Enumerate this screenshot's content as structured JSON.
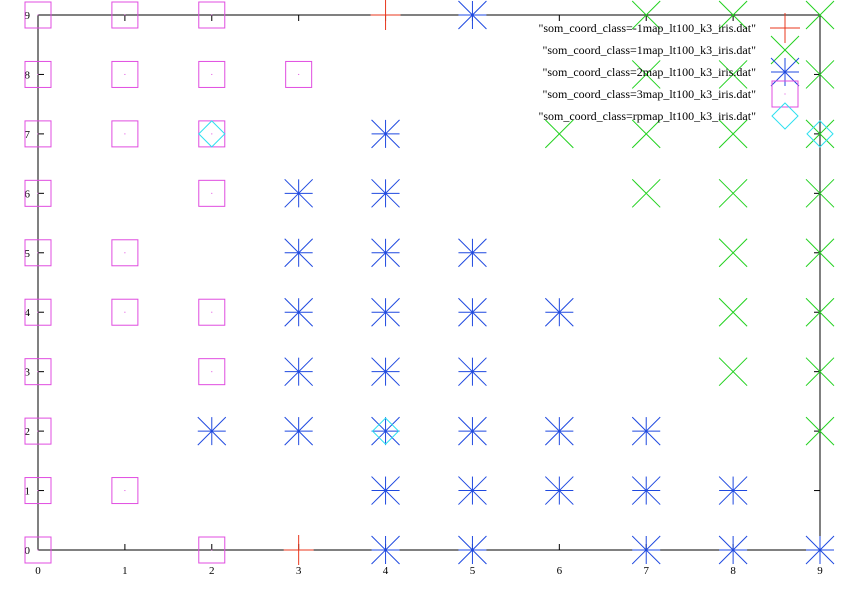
{
  "chart_data": {
    "type": "scatter",
    "title": "",
    "xlabel": "",
    "ylabel": "",
    "xlim": [
      0,
      9
    ],
    "ylim": [
      0,
      9
    ],
    "x_ticks": [
      "0",
      "1",
      "2",
      "3",
      "4",
      "5",
      "6",
      "7",
      "8",
      "9"
    ],
    "y_ticks": [
      "0",
      "1",
      "2",
      "3",
      "4",
      "5",
      "6",
      "7",
      "8",
      "9"
    ],
    "grid": false,
    "legend_position": "top-right",
    "series": [
      {
        "name": "\"som_coord_class=-1map_lt100_k3_iris.dat\"",
        "marker": "plus",
        "color": "#e8371d",
        "points": [
          [
            4,
            9
          ],
          [
            3,
            0
          ]
        ]
      },
      {
        "name": "\"som_coord_class=1map_lt100_k3_iris.dat\"",
        "marker": "cross",
        "color": "#22d11f",
        "points": [
          [
            7,
            9
          ],
          [
            8,
            9
          ],
          [
            9,
            9
          ],
          [
            7,
            8
          ],
          [
            8,
            8
          ],
          [
            9,
            8
          ],
          [
            6,
            7
          ],
          [
            7,
            7
          ],
          [
            8,
            7
          ],
          [
            9,
            7
          ],
          [
            7,
            6
          ],
          [
            8,
            6
          ],
          [
            9,
            6
          ],
          [
            8,
            5
          ],
          [
            9,
            5
          ],
          [
            8,
            4
          ],
          [
            9,
            4
          ],
          [
            8,
            3
          ],
          [
            9,
            3
          ],
          [
            9,
            2
          ]
        ]
      },
      {
        "name": "\"som_coord_class=2map_lt100_k3_iris.dat\"",
        "marker": "star",
        "color": "#1f49e0",
        "points": [
          [
            5,
            9
          ],
          [
            4,
            7
          ],
          [
            3,
            6
          ],
          [
            4,
            6
          ],
          [
            3,
            5
          ],
          [
            4,
            5
          ],
          [
            5,
            5
          ],
          [
            3,
            4
          ],
          [
            4,
            4
          ],
          [
            5,
            4
          ],
          [
            6,
            4
          ],
          [
            3,
            3
          ],
          [
            4,
            3
          ],
          [
            5,
            3
          ],
          [
            2,
            2
          ],
          [
            3,
            2
          ],
          [
            4,
            2
          ],
          [
            5,
            2
          ],
          [
            6,
            2
          ],
          [
            7,
            2
          ],
          [
            4,
            1
          ],
          [
            5,
            1
          ],
          [
            6,
            1
          ],
          [
            7,
            1
          ],
          [
            8,
            1
          ],
          [
            4,
            0
          ],
          [
            5,
            0
          ],
          [
            7,
            0
          ],
          [
            8,
            0
          ],
          [
            9,
            0
          ]
        ]
      },
      {
        "name": "\"som_coord_class=3map_lt100_k3_iris.dat\"",
        "marker": "box",
        "color": "#e04ce0",
        "points": [
          [
            0,
            9
          ],
          [
            1,
            9
          ],
          [
            2,
            9
          ],
          [
            0,
            8
          ],
          [
            1,
            8
          ],
          [
            2,
            8
          ],
          [
            3,
            8
          ],
          [
            0,
            7
          ],
          [
            1,
            7
          ],
          [
            2,
            7
          ],
          [
            0,
            6
          ],
          [
            2,
            6
          ],
          [
            0,
            5
          ],
          [
            1,
            5
          ],
          [
            0,
            4
          ],
          [
            1,
            4
          ],
          [
            2,
            4
          ],
          [
            0,
            3
          ],
          [
            2,
            3
          ],
          [
            0,
            2
          ],
          [
            0,
            1
          ],
          [
            1,
            1
          ],
          [
            0,
            0
          ],
          [
            2,
            0
          ]
        ]
      },
      {
        "name": "\"som_coord_class=rpmap_lt100_k3_iris.dat\"",
        "marker": "diamond",
        "color": "#2ee0f0",
        "points": [
          [
            2,
            7
          ],
          [
            9,
            7
          ],
          [
            4,
            2
          ]
        ]
      }
    ]
  }
}
